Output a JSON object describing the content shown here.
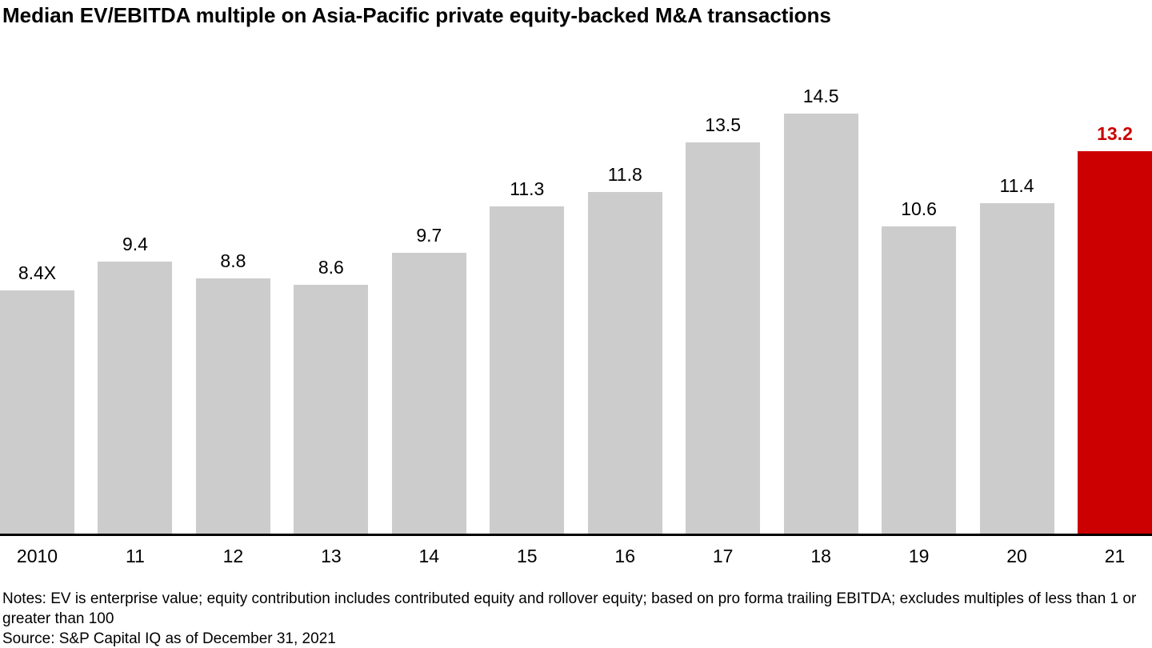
{
  "title": "Median EV/EBITDA multiple on Asia-Pacific private equity-backed M&A transactions",
  "chart_data": {
    "type": "bar",
    "categories": [
      "2010",
      "11",
      "12",
      "13",
      "14",
      "15",
      "16",
      "17",
      "18",
      "19",
      "20",
      "21"
    ],
    "values": [
      8.4,
      9.4,
      8.8,
      8.6,
      9.7,
      11.3,
      11.8,
      13.5,
      14.5,
      10.6,
      11.4,
      13.2
    ],
    "value_labels": [
      "8.4X",
      "9.4",
      "8.8",
      "8.6",
      "9.7",
      "11.3",
      "11.8",
      "13.5",
      "14.5",
      "10.6",
      "11.4",
      "13.2"
    ],
    "highlight_index": 11,
    "title": "Median EV/EBITDA multiple on Asia-Pacific private equity-backed M&A transactions",
    "xlabel": "",
    "ylabel": "",
    "ylim": [
      0,
      15.9
    ],
    "grid": false,
    "legend": false,
    "y_axis_shown": false,
    "unit_suffix_on_first_label": "X"
  },
  "colors": {
    "bar": "#cccccc",
    "highlight": "#cc0000",
    "highlight_label": "#cc0000",
    "axis": "#000000",
    "text": "#000000"
  },
  "notes": "Notes: EV is enterprise value; equity contribution includes contributed equity and rollover equity; based on pro forma trailing EBITDA; excludes multiples of less than 1 or greater than 100",
  "source": "Source: S&P Capital IQ as of December 31, 2021"
}
